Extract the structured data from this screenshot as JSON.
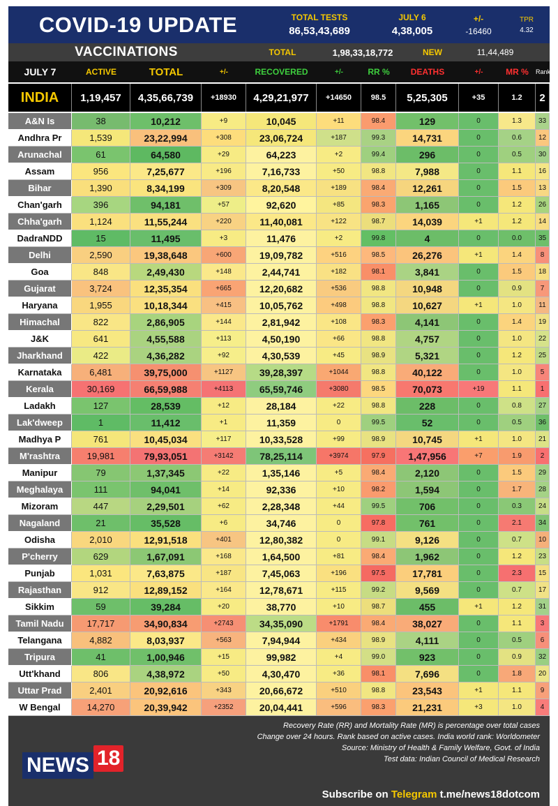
{
  "header": {
    "title": "COVID-19 UPDATE",
    "total_tests_label": "TOTAL TESTS",
    "total_tests_value": "86,53,43,689",
    "date_label": "JULY 6",
    "date_value": "4,38,005",
    "change_label": "+/-",
    "change_value": "-16460",
    "tpr_label": "TPR",
    "tpr_value": "4.32"
  },
  "vaccinations": {
    "label": "VACCINATIONS",
    "total_label": "TOTAL",
    "total_value": "1,98,33,18,772",
    "new_label": "NEW",
    "new_value": "11,44,489"
  },
  "columns": [
    "JULY 7",
    "ACTIVE",
    "TOTAL",
    "+/-",
    "RECOVERED",
    "+/-",
    "RR %",
    "DEATHS",
    "+/-",
    "MR %",
    "Rank"
  ],
  "column_colors": [
    "#ffffff",
    "#f5c800",
    "#f5c800",
    "#f5c800",
    "#3ecf3e",
    "#3ecf3e",
    "#3ecf3e",
    "#ff3030",
    "#ff3030",
    "#ff3030",
    "#ffffff"
  ],
  "india": [
    "INDIA",
    "1,19,457",
    "4,35,66,739",
    "+18930",
    "4,29,21,977",
    "+14650",
    "98.5",
    "5,25,305",
    "+35",
    "1.2",
    "2"
  ],
  "rows": [
    {
      "c": [
        "A&N Is",
        "38",
        "10,212",
        "+9",
        "10,045",
        "+11",
        "98.4",
        "129",
        "0",
        "1.3",
        "33"
      ],
      "bg": [
        "#77bb6e",
        "#6ebf6a",
        "#f7eb84",
        "#f5e77a",
        "#fddd7c",
        "#fa9b6e",
        "#72c06a",
        "#69be6b",
        "#f7e88a",
        "#aad28a"
      ]
    },
    {
      "c": [
        "Andhra Pr",
        "1,539",
        "23,22,994",
        "+308",
        "23,06,724",
        "+187",
        "99.3",
        "14,731",
        "0",
        "0.6",
        "12"
      ],
      "bg": [
        "#f5e77a",
        "#f9c07c",
        "#fddd7c",
        "#f5e77a",
        "#cfe08a",
        "#a9d284",
        "#fbd57e",
        "#69be6b",
        "#a5d286",
        "#fbc77e"
      ]
    },
    {
      "c": [
        "Arunachal",
        "61",
        "64,580",
        "+29",
        "64,223",
        "+2",
        "99.4",
        "296",
        "0",
        "0.5",
        "30"
      ],
      "bg": [
        "#7ac46e",
        "#5eb961",
        "#f7eb84",
        "#fdf2a0",
        "#f7eb84",
        "#9fd07f",
        "#6cbd68",
        "#69be6b",
        "#9fd07f",
        "#a3d18a"
      ]
    },
    {
      "c": [
        "Assam",
        "956",
        "7,25,677",
        "+196",
        "7,16,733",
        "+50",
        "98.8",
        "7,988",
        "0",
        "1.1",
        "16"
      ],
      "bg": [
        "#fbe67e",
        "#fbe888",
        "#f8ea86",
        "#fdf2a0",
        "#f7eb84",
        "#f1e682",
        "#f4e886",
        "#69be6b",
        "#f5e77a",
        "#f5e686"
      ]
    },
    {
      "c": [
        "Bihar",
        "1,390",
        "8,34,199",
        "+309",
        "8,20,548",
        "+189",
        "98.4",
        "12,261",
        "0",
        "1.5",
        "13"
      ],
      "bg": [
        "#f9df7c",
        "#fae47e",
        "#f7c582",
        "#fbe888",
        "#f7e182",
        "#faaa74",
        "#f6d57e",
        "#69be6b",
        "#fbca7c",
        "#f7d883"
      ]
    },
    {
      "c": [
        "Chan'garh",
        "396",
        "94,181",
        "+57",
        "92,620",
        "+85",
        "98.3",
        "1,165",
        "0",
        "1.2",
        "26"
      ],
      "bg": [
        "#a7d680",
        "#6fbf6a",
        "#eeee88",
        "#fff49e",
        "#f4e680",
        "#faa46e",
        "#8dc676",
        "#69be6b",
        "#f5e77a",
        "#a8d47e"
      ]
    },
    {
      "c": [
        "Chha'garh",
        "1,124",
        "11,55,244",
        "+220",
        "11,40,081",
        "+122",
        "98.7",
        "14,039",
        "+1",
        "1.2",
        "14"
      ],
      "bg": [
        "#fae07e",
        "#fae080",
        "#f8d283",
        "#fbe888",
        "#f8e384",
        "#ecde7c",
        "#fbd57e",
        "#f5e77a",
        "#f5e77a",
        "#f7dd82"
      ]
    },
    {
      "c": [
        "DadraNDD",
        "15",
        "11,495",
        "+3",
        "11,476",
        "+2",
        "99.8",
        "4",
        "0",
        "0.0",
        "35"
      ],
      "bg": [
        "#5fbb65",
        "#69be6b",
        "#f7eb84",
        "#fdf2a0",
        "#f7eb84",
        "#63bf64",
        "#6cbd68",
        "#69be6b",
        "#6ebf6a",
        "#6ebf6a"
      ]
    },
    {
      "c": [
        "Delhi",
        "2,590",
        "19,38,648",
        "+600",
        "19,09,782",
        "+516",
        "98.5",
        "26,276",
        "+1",
        "1.4",
        "8"
      ],
      "bg": [
        "#f9cf80",
        "#fbc77e",
        "#f8a676",
        "#fdf2a0",
        "#fdd280",
        "#fdb87c",
        "#fbc47c",
        "#f5e77a",
        "#fbd47e",
        "#f7907a"
      ]
    },
    {
      "c": [
        "Goa",
        "848",
        "2,49,430",
        "+148",
        "2,44,741",
        "+182",
        "98.1",
        "3,841",
        "0",
        "1.5",
        "18"
      ],
      "bg": [
        "#f9e686",
        "#b8d87e",
        "#fae88a",
        "#fdf2a0",
        "#f9e184",
        "#f98f68",
        "#aad384",
        "#69be6b",
        "#fbca7c",
        "#f7df82"
      ]
    },
    {
      "c": [
        "Gujarat",
        "3,724",
        "12,35,354",
        "+665",
        "12,20,682",
        "+536",
        "98.8",
        "10,948",
        "0",
        "0.9",
        "7"
      ],
      "bg": [
        "#f9c27e",
        "#fae07e",
        "#f9a474",
        "#fdf2a0",
        "#f9cb80",
        "#f1e682",
        "#f4d780",
        "#69be6b",
        "#e3e282",
        "#f7987a"
      ]
    },
    {
      "c": [
        "Haryana",
        "1,955",
        "10,18,344",
        "+415",
        "10,05,762",
        "+498",
        "98.8",
        "10,627",
        "+1",
        "1.0",
        "11"
      ],
      "bg": [
        "#f9d77e",
        "#fae080",
        "#f8c083",
        "#fdf2a0",
        "#fccb7e",
        "#f1e682",
        "#f4d780",
        "#f5e77a",
        "#f4e682",
        "#f5b883"
      ]
    },
    {
      "c": [
        "Himachal",
        "822",
        "2,86,905",
        "+144",
        "2,81,942",
        "+108",
        "98.3",
        "4,141",
        "0",
        "1.4",
        "19"
      ],
      "bg": [
        "#f9e686",
        "#a8d47e",
        "#fae88a",
        "#fdf2a0",
        "#fae686",
        "#fba06e",
        "#8dc676",
        "#69be6b",
        "#fbd47e",
        "#f1e286"
      ]
    },
    {
      "c": [
        "J&K",
        "641",
        "4,55,588",
        "+113",
        "4,50,190",
        "+66",
        "98.8",
        "4,757",
        "0",
        "1.0",
        "22"
      ],
      "bg": [
        "#f7e882",
        "#aad380",
        "#f6ee8a",
        "#fdf2a0",
        "#fae686",
        "#f1e682",
        "#b0d583",
        "#69be6b",
        "#f4e682",
        "#d6e28a"
      ]
    },
    {
      "c": [
        "Jharkhand",
        "422",
        "4,36,282",
        "+92",
        "4,30,539",
        "+45",
        "98.9",
        "5,321",
        "0",
        "1.2",
        "25"
      ],
      "bg": [
        "#eaeb86",
        "#aad380",
        "#f6ee8a",
        "#fdf2a0",
        "#f7eb84",
        "#e8e282",
        "#b0d583",
        "#69be6b",
        "#f5e77a",
        "#c1db86"
      ]
    },
    {
      "c": [
        "Karnataka",
        "6,481",
        "39,75,000",
        "+1127",
        "39,28,397",
        "+1044",
        "98.8",
        "40,122",
        "0",
        "1.0",
        "5"
      ],
      "bg": [
        "#f7b07a",
        "#f69070",
        "#f7c582",
        "#b6db86",
        "#f9a872",
        "#f1e682",
        "#f9ab78",
        "#69be6b",
        "#f4e682",
        "#f7857a"
      ]
    },
    {
      "c": [
        "Kerala",
        "30,169",
        "66,59,988",
        "+4113",
        "65,59,746",
        "+3080",
        "98.5",
        "70,073",
        "+19",
        "1.1",
        "1"
      ],
      "bg": [
        "#f67272",
        "#f58072",
        "#f57374",
        "#8fcc7f",
        "#f57a6c",
        "#fdd77e",
        "#f8786f",
        "#f87878",
        "#f5e77a",
        "#f87070"
      ]
    },
    {
      "c": [
        "Ladakh",
        "127",
        "28,539",
        "+12",
        "28,184",
        "+22",
        "98.8",
        "228",
        "0",
        "0.8",
        "27"
      ],
      "bg": [
        "#7ac46e",
        "#64bd64",
        "#f7eb84",
        "#fdf2a0",
        "#f7eb84",
        "#f1e682",
        "#6cbd68",
        "#69be6b",
        "#cee187",
        "#a5d286"
      ]
    },
    {
      "c": [
        "Lak'dweep",
        "1",
        "11,412",
        "+1",
        "11,359",
        "0",
        "99.5",
        "52",
        "0",
        "0.5",
        "36"
      ],
      "bg": [
        "#5fbb65",
        "#69be6b",
        "#f7eb84",
        "#fdf2a0",
        "#f7eb84",
        "#9fd07f",
        "#69be6b",
        "#69be6b",
        "#9fd07f",
        "#6ebf6a"
      ]
    },
    {
      "c": [
        "Madhya P",
        "761",
        "10,45,034",
        "+117",
        "10,33,528",
        "+99",
        "98.9",
        "10,745",
        "+1",
        "1.0",
        "21"
      ],
      "bg": [
        "#f5e67a",
        "#fae080",
        "#f6ee8a",
        "#fdf2a0",
        "#f7eb84",
        "#e8e282",
        "#f4d780",
        "#f5e77a",
        "#f4e682",
        "#dde386"
      ]
    },
    {
      "c": [
        "M'rashtra",
        "19,981",
        "79,93,051",
        "+3142",
        "78,25,114",
        "+3974",
        "97.9",
        "1,47,956",
        "+7",
        "1.9",
        "2"
      ],
      "bg": [
        "#f67f6e",
        "#f47373",
        "#f57c74",
        "#7ec578",
        "#f67668",
        "#f67060",
        "#f87676",
        "#fa9e6c",
        "#f89b6e",
        "#f87070"
      ]
    },
    {
      "c": [
        "Manipur",
        "79",
        "1,37,345",
        "+22",
        "1,35,146",
        "+5",
        "98.4",
        "2,120",
        "0",
        "1.5",
        "29"
      ],
      "bg": [
        "#86c672",
        "#8cc874",
        "#f7eb84",
        "#fdf2a0",
        "#f7eb84",
        "#faaa74",
        "#8dc676",
        "#69be6b",
        "#fbca7c",
        "#a5d286"
      ]
    },
    {
      "c": [
        "Meghalaya",
        "111",
        "94,041",
        "+14",
        "92,336",
        "+10",
        "98.2",
        "1,594",
        "0",
        "1.7",
        "28"
      ],
      "bg": [
        "#7ac46e",
        "#6fbf6a",
        "#f7eb84",
        "#fdf2a0",
        "#f7eb84",
        "#fa9b6e",
        "#8dc676",
        "#69be6b",
        "#f8b47a",
        "#a5d286"
      ]
    },
    {
      "c": [
        "Mizoram",
        "447",
        "2,29,501",
        "+62",
        "2,28,348",
        "+44",
        "99.5",
        "706",
        "0",
        "0.3",
        "24"
      ],
      "bg": [
        "#b8d782",
        "#a6d17e",
        "#f7eb84",
        "#fdf2a0",
        "#f7eb84",
        "#9fd07f",
        "#72c06a",
        "#69be6b",
        "#8ac876",
        "#c6dd88"
      ]
    },
    {
      "c": [
        "Nagaland",
        "21",
        "35,528",
        "+6",
        "34,746",
        "0",
        "97.8",
        "761",
        "0",
        "2.1",
        "34"
      ],
      "bg": [
        "#6ebf6a",
        "#66bd66",
        "#f7eb84",
        "#fdf2a0",
        "#f7eb84",
        "#f76d62",
        "#72c06a",
        "#69be6b",
        "#f67a72",
        "#82c474"
      ]
    },
    {
      "c": [
        "Odisha",
        "2,010",
        "12,91,518",
        "+401",
        "12,80,382",
        "0",
        "99.1",
        "9,126",
        "0",
        "0.7",
        "10"
      ],
      "bg": [
        "#f9d77e",
        "#fae07e",
        "#f7c582",
        "#fdf2a0",
        "#f7eb84",
        "#c7dc84",
        "#f4e082",
        "#69be6b",
        "#cee187",
        "#f5b07a"
      ]
    },
    {
      "c": [
        "P'cherry",
        "629",
        "1,67,091",
        "+168",
        "1,64,500",
        "+81",
        "98.4",
        "1,962",
        "0",
        "1.2",
        "23"
      ],
      "bg": [
        "#b2d67e",
        "#8cc874",
        "#fae88a",
        "#fdf2a0",
        "#f7eb84",
        "#faaa74",
        "#8dc676",
        "#69be6b",
        "#f5e77a",
        "#c8de86"
      ]
    },
    {
      "c": [
        "Punjab",
        "1,031",
        "7,63,875",
        "+187",
        "7,45,063",
        "+196",
        "97.5",
        "17,781",
        "0",
        "2.3",
        "15"
      ],
      "bg": [
        "#fbe67e",
        "#fbe888",
        "#f8e584",
        "#fdf2a0",
        "#fae080",
        "#f56a62",
        "#fbce7c",
        "#69be6b",
        "#f67070",
        "#f5df82"
      ]
    },
    {
      "c": [
        "Rajasthan",
        "912",
        "12,89,152",
        "+164",
        "12,78,671",
        "+115",
        "99.2",
        "9,569",
        "0",
        "0.7",
        "17"
      ],
      "bg": [
        "#f9e686",
        "#fae07e",
        "#fae88a",
        "#fdf2a0",
        "#f7eb84",
        "#c7dc84",
        "#f4e082",
        "#69be6b",
        "#cee187",
        "#f1e286"
      ]
    },
    {
      "c": [
        "Sikkim",
        "59",
        "39,284",
        "+20",
        "38,770",
        "+10",
        "98.7",
        "455",
        "+1",
        "1.2",
        "31"
      ],
      "bg": [
        "#6ebf6a",
        "#66bd66",
        "#f7eb84",
        "#fdf2a0",
        "#f7eb84",
        "#ecde7c",
        "#6cbd68",
        "#f5e77a",
        "#f5e77a",
        "#a3d18a"
      ]
    },
    {
      "c": [
        "Tamil Nadu",
        "17,717",
        "34,90,834",
        "+2743",
        "34,35,090",
        "+1791",
        "98.4",
        "38,027",
        "0",
        "1.1",
        "3"
      ],
      "bg": [
        "#f69a72",
        "#f79c72",
        "#f68f74",
        "#bcdc86",
        "#f88c6c",
        "#faaa74",
        "#f9ab78",
        "#69be6b",
        "#f5e77a",
        "#f87878"
      ]
    },
    {
      "c": [
        "Telangana",
        "4,882",
        "8,03,937",
        "+563",
        "7,94,944",
        "+434",
        "98.9",
        "4,111",
        "0",
        "0.5",
        "6"
      ],
      "bg": [
        "#f8c07c",
        "#fbe888",
        "#f8b47e",
        "#fdf2a0",
        "#fad07e",
        "#e8e282",
        "#aad384",
        "#69be6b",
        "#9fd07f",
        "#f7907a"
      ]
    },
    {
      "c": [
        "Tripura",
        "41",
        "1,00,946",
        "+15",
        "99,982",
        "+4",
        "99.0",
        "923",
        "0",
        "0.9",
        "32"
      ],
      "bg": [
        "#6ebf6a",
        "#70c06a",
        "#f7eb84",
        "#fdf2a0",
        "#f7eb84",
        "#d3df86",
        "#72c06a",
        "#69be6b",
        "#e3e282",
        "#99cf82"
      ]
    },
    {
      "c": [
        "Utt'khand",
        "806",
        "4,38,972",
        "+50",
        "4,30,470",
        "+36",
        "98.1",
        "7,696",
        "0",
        "1.8",
        "20"
      ],
      "bg": [
        "#f9e686",
        "#aad380",
        "#f7eb84",
        "#fdf2a0",
        "#f7eb84",
        "#f98f68",
        "#f4e082",
        "#69be6b",
        "#f8a878",
        "#ede487"
      ]
    },
    {
      "c": [
        "Uttar Prad",
        "2,401",
        "20,92,616",
        "+343",
        "20,66,672",
        "+510",
        "98.8",
        "23,543",
        "+1",
        "1.1",
        "9"
      ],
      "bg": [
        "#f9cf80",
        "#fbc47c",
        "#f8d283",
        "#fdf2a0",
        "#fad07e",
        "#f1e682",
        "#fbc47c",
        "#f5e77a",
        "#f5e77a",
        "#f7a07a"
      ]
    },
    {
      "c": [
        "W Bengal",
        "14,270",
        "20,39,942",
        "+2352",
        "20,04,441",
        "+596",
        "98.3",
        "21,231",
        "+3",
        "1.0",
        "4"
      ],
      "bg": [
        "#f7a178",
        "#fbc47c",
        "#f6a07c",
        "#fdf2a0",
        "#fabd7e",
        "#fba06e",
        "#fbca7c",
        "#f5e77a",
        "#f4e682",
        "#f87c7a"
      ]
    }
  ],
  "footer": {
    "note1": "Recovery Rate (RR) and Mortality Rate (MR) is percentage over total cases",
    "note2": "Change over 24 hours. Rank based on active cases. India world rank: Worldometer",
    "note3": "Source: Ministry of Health & Family Welfare, Govt. of India",
    "note4": "Test data: Indian Council of Medical Research",
    "subscribe_prefix": "Subscribe on",
    "subscribe_channel": "Telegram",
    "subscribe_link": "t.me/news18dotcom",
    "logo_text": "NEWS",
    "logo_num": "18"
  },
  "colors": {
    "navy": "#1a2f6b",
    "yellow": "#f5c800",
    "red": "#e2232a"
  }
}
